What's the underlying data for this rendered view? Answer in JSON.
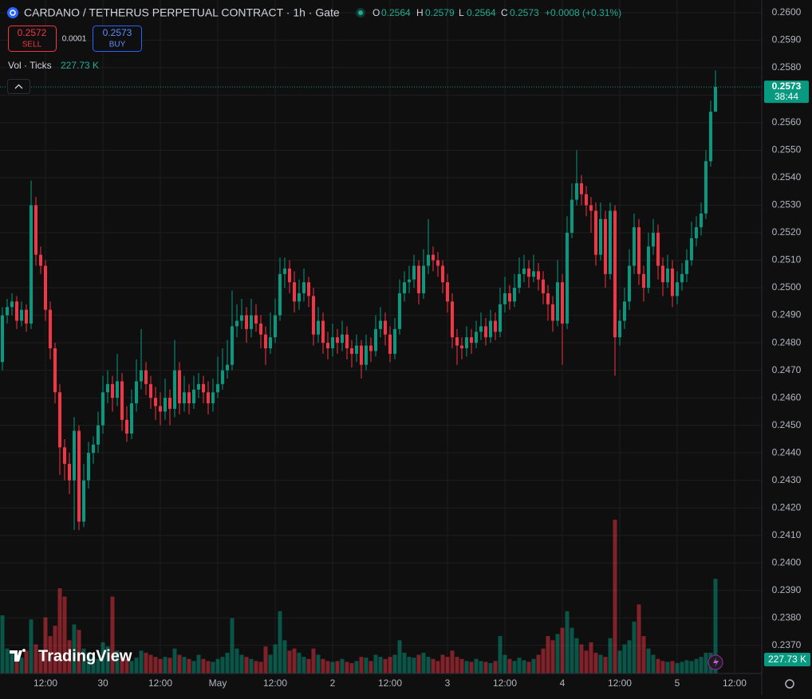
{
  "header": {
    "title": "CARDANO / TETHERUS PERPETUAL CONTRACT · 1h · Gate",
    "o_label": "O",
    "o": "0.2564",
    "h_label": "H",
    "h": "0.2579",
    "l_label": "L",
    "l": "0.2564",
    "c_label": "C",
    "c": "0.2573",
    "change": "+0.0008 (+0.31%)"
  },
  "trade": {
    "sell_price": "0.2572",
    "sell": "SELL",
    "spread": "0.0001",
    "buy_price": "0.2573",
    "buy": "BUY"
  },
  "branding": "TradingView",
  "chart_data": {
    "type": "candlestick",
    "volume_title": "Vol · Ticks",
    "volume_label": "227.73 K",
    "last_price": 0.2573,
    "countdown": "38:44",
    "up_color": "#089981",
    "down_color": "#f23645",
    "grid": true,
    "xlim": [
      -0.5,
      158.67
    ],
    "ylim": [
      0.23598,
      0.26046
    ],
    "xticks": [
      {
        "value": 9,
        "label": "12:00"
      },
      {
        "value": 21,
        "label": "30"
      },
      {
        "value": 33,
        "label": "12:00"
      },
      {
        "value": 45,
        "label": "May"
      },
      {
        "value": 57,
        "label": "12:00"
      },
      {
        "value": 69,
        "label": "2"
      },
      {
        "value": 81,
        "label": "12:00"
      },
      {
        "value": 93,
        "label": "3"
      },
      {
        "value": 105,
        "label": "12:00"
      },
      {
        "value": 117,
        "label": "4"
      },
      {
        "value": 129,
        "label": "12:00"
      },
      {
        "value": 141,
        "label": "5"
      },
      {
        "value": 153,
        "label": "12:00"
      }
    ],
    "yticks": [
      {
        "value": 0.237,
        "label": "0.2370"
      },
      {
        "value": 0.238,
        "label": "0.2380"
      },
      {
        "value": 0.239,
        "label": "0.2390"
      },
      {
        "value": 0.24,
        "label": "0.2400"
      },
      {
        "value": 0.241,
        "label": "0.2410"
      },
      {
        "value": 0.242,
        "label": "0.2420"
      },
      {
        "value": 0.243,
        "label": "0.2430"
      },
      {
        "value": 0.244,
        "label": "0.2440"
      },
      {
        "value": 0.245,
        "label": "0.2450"
      },
      {
        "value": 0.246,
        "label": "0.2460"
      },
      {
        "value": 0.247,
        "label": "0.2470"
      },
      {
        "value": 0.248,
        "label": "0.2480"
      },
      {
        "value": 0.249,
        "label": "0.2490"
      },
      {
        "value": 0.25,
        "label": "0.2500"
      },
      {
        "value": 0.251,
        "label": "0.2510"
      },
      {
        "value": 0.252,
        "label": "0.2520"
      },
      {
        "value": 0.253,
        "label": "0.2530"
      },
      {
        "value": 0.254,
        "label": "0.2540"
      },
      {
        "value": 0.255,
        "label": "0.2550"
      },
      {
        "value": 0.256,
        "label": "0.2560"
      },
      {
        "value": 0.257,
        "label": "0.2570"
      },
      {
        "value": 0.258,
        "label": "0.2580"
      },
      {
        "value": 0.259,
        "label": "0.2590"
      },
      {
        "value": 0.26,
        "label": "0.2600"
      }
    ],
    "candles": [
      [
        0.2473,
        0.2493,
        0.247,
        0.249
      ],
      [
        0.249,
        0.2496,
        0.2487,
        0.2493
      ],
      [
        0.2493,
        0.2498,
        0.249,
        0.2495
      ],
      [
        0.2495,
        0.2497,
        0.2485,
        0.2488
      ],
      [
        0.2488,
        0.2495,
        0.2486,
        0.2492
      ],
      [
        0.2492,
        0.2494,
        0.2484,
        0.2487
      ],
      [
        0.2487,
        0.2539,
        0.2485,
        0.253
      ],
      [
        0.253,
        0.2533,
        0.2508,
        0.2512
      ],
      [
        0.2512,
        0.2515,
        0.2505,
        0.2508
      ],
      [
        0.2508,
        0.251,
        0.2488,
        0.2492
      ],
      [
        0.2492,
        0.2495,
        0.2474,
        0.2478
      ],
      [
        0.2478,
        0.248,
        0.2458,
        0.2462
      ],
      [
        0.2462,
        0.2465,
        0.2432,
        0.2442
      ],
      [
        0.2442,
        0.2445,
        0.243,
        0.2436
      ],
      [
        0.2436,
        0.244,
        0.2425,
        0.243
      ],
      [
        0.243,
        0.2453,
        0.2412,
        0.2448
      ],
      [
        0.2448,
        0.245,
        0.2412,
        0.2415
      ],
      [
        0.2415,
        0.2436,
        0.2413,
        0.243
      ],
      [
        0.243,
        0.2444,
        0.2427,
        0.244
      ],
      [
        0.244,
        0.2446,
        0.2436,
        0.2443
      ],
      [
        0.2443,
        0.2455,
        0.244,
        0.245
      ],
      [
        0.245,
        0.2468,
        0.2447,
        0.2462
      ],
      [
        0.2462,
        0.247,
        0.2458,
        0.2465
      ],
      [
        0.2465,
        0.2468,
        0.2455,
        0.246
      ],
      [
        0.246,
        0.2476,
        0.2457,
        0.2466
      ],
      [
        0.2466,
        0.2469,
        0.2448,
        0.2452
      ],
      [
        0.2452,
        0.2457,
        0.2444,
        0.2447
      ],
      [
        0.2447,
        0.2463,
        0.2445,
        0.2458
      ],
      [
        0.2458,
        0.2474,
        0.2455,
        0.2466
      ],
      [
        0.2466,
        0.2485,
        0.2463,
        0.247
      ],
      [
        0.247,
        0.2473,
        0.2461,
        0.2465
      ],
      [
        0.2465,
        0.2468,
        0.2456,
        0.246
      ],
      [
        0.246,
        0.2464,
        0.2452,
        0.2457
      ],
      [
        0.2457,
        0.2462,
        0.245,
        0.2455
      ],
      [
        0.2455,
        0.2467,
        0.2452,
        0.246
      ],
      [
        0.246,
        0.2463,
        0.245,
        0.2456
      ],
      [
        0.2456,
        0.2481,
        0.2453,
        0.247
      ],
      [
        0.247,
        0.2473,
        0.2454,
        0.2458
      ],
      [
        0.2458,
        0.2468,
        0.2455,
        0.2462
      ],
      [
        0.2462,
        0.2465,
        0.2454,
        0.2458
      ],
      [
        0.2458,
        0.2468,
        0.2456,
        0.2463
      ],
      [
        0.2463,
        0.2469,
        0.246,
        0.2465
      ],
      [
        0.2465,
        0.2468,
        0.2458,
        0.2462
      ],
      [
        0.2462,
        0.2466,
        0.2454,
        0.2458
      ],
      [
        0.2458,
        0.2467,
        0.2455,
        0.2462
      ],
      [
        0.2462,
        0.2475,
        0.246,
        0.2465
      ],
      [
        0.2465,
        0.2478,
        0.2463,
        0.247
      ],
      [
        0.247,
        0.2481,
        0.2467,
        0.2472
      ],
      [
        0.2472,
        0.2499,
        0.247,
        0.2486
      ],
      [
        0.2486,
        0.2494,
        0.2482,
        0.2488
      ],
      [
        0.2488,
        0.2496,
        0.2485,
        0.249
      ],
      [
        0.249,
        0.2493,
        0.248,
        0.2485
      ],
      [
        0.2485,
        0.2496,
        0.2482,
        0.249
      ],
      [
        0.249,
        0.2494,
        0.2484,
        0.2487
      ],
      [
        0.2487,
        0.249,
        0.2478,
        0.2483
      ],
      [
        0.2483,
        0.2486,
        0.2472,
        0.2478
      ],
      [
        0.2478,
        0.2491,
        0.2476,
        0.2482
      ],
      [
        0.2482,
        0.2496,
        0.248,
        0.249
      ],
      [
        0.249,
        0.2511,
        0.2488,
        0.2505
      ],
      [
        0.2505,
        0.2511,
        0.25,
        0.2507
      ],
      [
        0.2507,
        0.251,
        0.2498,
        0.2502
      ],
      [
        0.2502,
        0.2506,
        0.2491,
        0.2495
      ],
      [
        0.2495,
        0.2503,
        0.2492,
        0.2498
      ],
      [
        0.2498,
        0.2507,
        0.2495,
        0.2502
      ],
      [
        0.2502,
        0.2504,
        0.2493,
        0.2497
      ],
      [
        0.2497,
        0.25,
        0.2479,
        0.2483
      ],
      [
        0.2483,
        0.2493,
        0.248,
        0.2488
      ],
      [
        0.2488,
        0.2491,
        0.2476,
        0.248
      ],
      [
        0.248,
        0.2484,
        0.2474,
        0.2478
      ],
      [
        0.2478,
        0.2487,
        0.2475,
        0.2482
      ],
      [
        0.2482,
        0.2485,
        0.2476,
        0.248
      ],
      [
        0.248,
        0.2488,
        0.2477,
        0.2483
      ],
      [
        0.2483,
        0.2486,
        0.2474,
        0.2478
      ],
      [
        0.2478,
        0.2481,
        0.2471,
        0.2476
      ],
      [
        0.2476,
        0.2483,
        0.2473,
        0.2479
      ],
      [
        0.2479,
        0.2481,
        0.2467,
        0.2472
      ],
      [
        0.2472,
        0.2483,
        0.247,
        0.2479
      ],
      [
        0.2479,
        0.2482,
        0.2473,
        0.2477
      ],
      [
        0.2477,
        0.249,
        0.2475,
        0.2485
      ],
      [
        0.2485,
        0.2493,
        0.2482,
        0.2488
      ],
      [
        0.2488,
        0.2491,
        0.2479,
        0.2483
      ],
      [
        0.2483,
        0.2486,
        0.2473,
        0.2476
      ],
      [
        0.2476,
        0.2489,
        0.2474,
        0.2485
      ],
      [
        0.2485,
        0.2503,
        0.2483,
        0.2498
      ],
      [
        0.2498,
        0.2506,
        0.2495,
        0.2502
      ],
      [
        0.2502,
        0.2508,
        0.2498,
        0.2503
      ],
      [
        0.2503,
        0.2512,
        0.25,
        0.2508
      ],
      [
        0.2508,
        0.251,
        0.2494,
        0.2498
      ],
      [
        0.2498,
        0.2514,
        0.2496,
        0.2508
      ],
      [
        0.2508,
        0.2525,
        0.2505,
        0.2512
      ],
      [
        0.2512,
        0.2515,
        0.2506,
        0.251
      ],
      [
        0.251,
        0.2513,
        0.2504,
        0.2508
      ],
      [
        0.2508,
        0.251,
        0.2498,
        0.2502
      ],
      [
        0.2502,
        0.2505,
        0.2491,
        0.2495
      ],
      [
        0.2495,
        0.2498,
        0.2478,
        0.2482
      ],
      [
        0.2482,
        0.2485,
        0.2472,
        0.2479
      ],
      [
        0.2479,
        0.2482,
        0.2474,
        0.2478
      ],
      [
        0.2478,
        0.2486,
        0.2475,
        0.2482
      ],
      [
        0.2482,
        0.2485,
        0.2476,
        0.248
      ],
      [
        0.248,
        0.2488,
        0.2478,
        0.2484
      ],
      [
        0.2484,
        0.2491,
        0.2481,
        0.2486
      ],
      [
        0.2486,
        0.2489,
        0.2479,
        0.2482
      ],
      [
        0.2482,
        0.2492,
        0.248,
        0.2488
      ],
      [
        0.2488,
        0.2491,
        0.2481,
        0.2484
      ],
      [
        0.2484,
        0.25,
        0.2482,
        0.2494
      ],
      [
        0.2494,
        0.2504,
        0.2491,
        0.2498
      ],
      [
        0.2498,
        0.2501,
        0.2492,
        0.2495
      ],
      [
        0.2495,
        0.2505,
        0.2493,
        0.25
      ],
      [
        0.25,
        0.2511,
        0.2498,
        0.2505
      ],
      [
        0.2505,
        0.2512,
        0.2502,
        0.2507
      ],
      [
        0.2507,
        0.251,
        0.25,
        0.2504
      ],
      [
        0.2504,
        0.2512,
        0.2502,
        0.2506
      ],
      [
        0.2506,
        0.2509,
        0.2499,
        0.2503
      ],
      [
        0.2503,
        0.2506,
        0.2494,
        0.2498
      ],
      [
        0.2498,
        0.2501,
        0.2488,
        0.2494
      ],
      [
        0.2494,
        0.2497,
        0.2484,
        0.2488
      ],
      [
        0.2488,
        0.251,
        0.2486,
        0.2502
      ],
      [
        0.2502,
        0.2505,
        0.2472,
        0.2487
      ],
      [
        0.2487,
        0.2526,
        0.2485,
        0.252
      ],
      [
        0.252,
        0.2538,
        0.2518,
        0.2532
      ],
      [
        0.2532,
        0.255,
        0.253,
        0.2538
      ],
      [
        0.2538,
        0.2541,
        0.253,
        0.2534
      ],
      [
        0.2534,
        0.2537,
        0.2526,
        0.253
      ],
      [
        0.253,
        0.2533,
        0.252,
        0.2528
      ],
      [
        0.2528,
        0.2531,
        0.2508,
        0.2512
      ],
      [
        0.2512,
        0.2531,
        0.251,
        0.2525
      ],
      [
        0.2525,
        0.2528,
        0.25,
        0.2505
      ],
      [
        0.2505,
        0.2531,
        0.2503,
        0.2528
      ],
      [
        0.2528,
        0.253,
        0.2468,
        0.2482
      ],
      [
        0.2482,
        0.2492,
        0.2479,
        0.2488
      ],
      [
        0.2488,
        0.25,
        0.2485,
        0.2495
      ],
      [
        0.2495,
        0.2514,
        0.2492,
        0.2508
      ],
      [
        0.2508,
        0.2527,
        0.2505,
        0.2522
      ],
      [
        0.2522,
        0.2525,
        0.2501,
        0.2505
      ],
      [
        0.2505,
        0.2508,
        0.2495,
        0.25
      ],
      [
        0.25,
        0.252,
        0.2498,
        0.2515
      ],
      [
        0.2515,
        0.2525,
        0.2512,
        0.252
      ],
      [
        0.252,
        0.2523,
        0.2503,
        0.2508
      ],
      [
        0.2508,
        0.2511,
        0.2497,
        0.2502
      ],
      [
        0.2502,
        0.2512,
        0.25,
        0.2507
      ],
      [
        0.2507,
        0.251,
        0.2493,
        0.2497
      ],
      [
        0.2497,
        0.2506,
        0.2494,
        0.2502
      ],
      [
        0.2502,
        0.2509,
        0.2499,
        0.2505
      ],
      [
        0.2505,
        0.2514,
        0.2502,
        0.251
      ],
      [
        0.251,
        0.2524,
        0.2508,
        0.2518
      ],
      [
        0.2518,
        0.2526,
        0.2515,
        0.2522
      ],
      [
        0.2522,
        0.2531,
        0.2519,
        0.2527
      ],
      [
        0.2527,
        0.255,
        0.2525,
        0.2546
      ],
      [
        0.2546,
        0.2568,
        0.2544,
        0.2564
      ],
      [
        0.2564,
        0.2579,
        0.2564,
        0.2573
      ]
    ],
    "volumes": [
      140000,
      60000,
      50000,
      45000,
      38000,
      55000,
      130000,
      70000,
      50000,
      135000,
      90000,
      115000,
      205000,
      185000,
      80000,
      118000,
      105000,
      60000,
      50000,
      40000,
      35000,
      75000,
      65000,
      185000,
      55000,
      40000,
      35000,
      30000,
      38000,
      55000,
      50000,
      45000,
      40000,
      35000,
      40000,
      38000,
      60000,
      45000,
      40000,
      35000,
      30000,
      45000,
      35000,
      30000,
      28000,
      35000,
      40000,
      50000,
      133000,
      60000,
      45000,
      40000,
      35000,
      30000,
      28000,
      65000,
      45000,
      70000,
      150000,
      80000,
      55000,
      60000,
      50000,
      40000,
      35000,
      60000,
      45000,
      35000,
      30000,
      28000,
      30000,
      35000,
      28000,
      25000,
      30000,
      40000,
      38000,
      30000,
      45000,
      40000,
      35000,
      40000,
      45000,
      80000,
      50000,
      40000,
      38000,
      45000,
      50000,
      40000,
      35000,
      30000,
      45000,
      40000,
      55000,
      40000,
      35000,
      30000,
      28000,
      35000,
      30000,
      28000,
      25000,
      30000,
      90000,
      45000,
      35000,
      30000,
      38000,
      32000,
      28000,
      35000,
      45000,
      60000,
      90000,
      80000,
      95000,
      110000,
      150000,
      110000,
      85000,
      70000,
      55000,
      75000,
      50000,
      45000,
      40000,
      85000,
      370000,
      55000,
      70000,
      80000,
      125000,
      166000,
      90000,
      60000,
      45000,
      35000,
      30000,
      28000,
      30000,
      25000,
      28000,
      32000,
      30000,
      35000,
      40000,
      50000,
      50000,
      227730
    ]
  }
}
